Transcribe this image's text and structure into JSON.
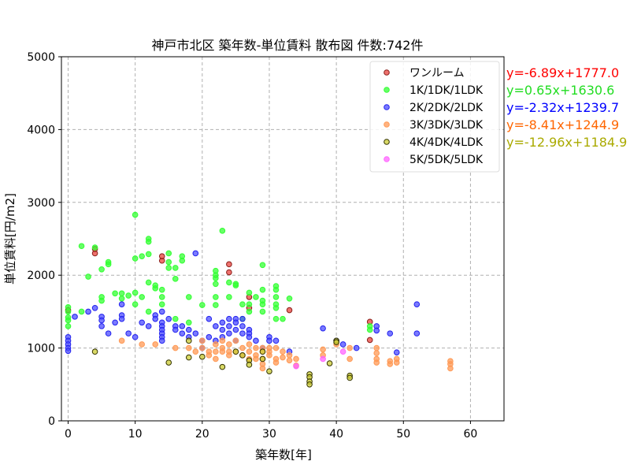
{
  "chart_data": {
    "type": "scatter",
    "title": "神戸市北区 築年数-単位賃料 散布図  件数:742件",
    "xlabel": "築年数[年]",
    "ylabel": "単位賃料[円/m2]",
    "xlim": [
      -1,
      65
    ],
    "ylim": [
      0,
      5000
    ],
    "xticks": [
      0,
      10,
      20,
      30,
      40,
      50,
      60
    ],
    "yticks": [
      0,
      1000,
      2000,
      3000,
      4000,
      5000
    ],
    "grid": true,
    "legend_position": "top-right",
    "series": [
      {
        "name": "ワンルーム",
        "color": "#e8413c",
        "edge": "#8a1f1a",
        "regression": "y=-6.89x+1777.0",
        "regression_color": "#ff0000",
        "points": [
          [
            0,
            1520
          ],
          [
            4,
            2300
          ],
          [
            4,
            2360
          ],
          [
            14,
            2200
          ],
          [
            14,
            2260
          ],
          [
            24,
            2040
          ],
          [
            24,
            2150
          ],
          [
            27,
            1700
          ],
          [
            27,
            1550
          ],
          [
            33,
            1520
          ],
          [
            45,
            1360
          ],
          [
            45,
            1110
          ]
        ]
      },
      {
        "name": "1K/1DK/1LDK",
        "color": "#33ff33",
        "edge": "#33ff33",
        "regression": "y=0.65x+1630.6",
        "regression_color": "#22dd22",
        "points": [
          [
            0,
            1560
          ],
          [
            0,
            1500
          ],
          [
            0,
            1420
          ],
          [
            0,
            1380
          ],
          [
            0,
            1300
          ],
          [
            2,
            2400
          ],
          [
            2,
            1500
          ],
          [
            3,
            1980
          ],
          [
            4,
            2380
          ],
          [
            5,
            1700
          ],
          [
            5,
            1650
          ],
          [
            5,
            2080
          ],
          [
            6,
            2180
          ],
          [
            6,
            2150
          ],
          [
            7,
            1750
          ],
          [
            8,
            1680
          ],
          [
            8,
            1750
          ],
          [
            9,
            1720
          ],
          [
            10,
            2830
          ],
          [
            10,
            2230
          ],
          [
            10,
            1760
          ],
          [
            10,
            1600
          ],
          [
            11,
            2260
          ],
          [
            11,
            1700
          ],
          [
            12,
            2500
          ],
          [
            12,
            2460
          ],
          [
            12,
            2290
          ],
          [
            12,
            1900
          ],
          [
            12,
            1500
          ],
          [
            13,
            1860
          ],
          [
            13,
            1820
          ],
          [
            14,
            1800
          ],
          [
            14,
            1700
          ],
          [
            14,
            1600
          ],
          [
            15,
            2300
          ],
          [
            15,
            2180
          ],
          [
            15,
            2100
          ],
          [
            16,
            2100
          ],
          [
            16,
            1950
          ],
          [
            16,
            1400
          ],
          [
            17,
            2200
          ],
          [
            17,
            2260
          ],
          [
            18,
            1700
          ],
          [
            18,
            1350
          ],
          [
            20,
            1590
          ],
          [
            22,
            2060
          ],
          [
            22,
            2000
          ],
          [
            22,
            1960
          ],
          [
            22,
            1880
          ],
          [
            22,
            1700
          ],
          [
            22,
            1590
          ],
          [
            23,
            2610
          ],
          [
            24,
            1900
          ],
          [
            24,
            1700
          ],
          [
            25,
            1880
          ],
          [
            25,
            1860
          ],
          [
            26,
            1600
          ],
          [
            26,
            1400
          ],
          [
            27,
            1760
          ],
          [
            27,
            1600
          ],
          [
            27,
            1500
          ],
          [
            28,
            1700
          ],
          [
            29,
            2140
          ],
          [
            29,
            1800
          ],
          [
            29,
            1650
          ],
          [
            29,
            1600
          ],
          [
            29,
            1500
          ],
          [
            31,
            1850
          ],
          [
            31,
            1800
          ],
          [
            31,
            1700
          ],
          [
            31,
            1600
          ],
          [
            31,
            1550
          ],
          [
            31,
            1400
          ],
          [
            32,
            1400
          ],
          [
            33,
            1680
          ],
          [
            45,
            1300
          ],
          [
            45,
            1250
          ]
        ]
      },
      {
        "name": "2K/2DK/2LDK",
        "color": "#4d4dff",
        "edge": "#2222ee",
        "regression": "y=-2.32x+1239.7",
        "regression_color": "#0000ff",
        "points": [
          [
            0,
            1150
          ],
          [
            0,
            1100
          ],
          [
            0,
            1050
          ],
          [
            0,
            1000
          ],
          [
            0,
            960
          ],
          [
            1,
            1430
          ],
          [
            3,
            1500
          ],
          [
            4,
            1550
          ],
          [
            5,
            1430
          ],
          [
            5,
            1380
          ],
          [
            5,
            1300
          ],
          [
            6,
            1200
          ],
          [
            7,
            1350
          ],
          [
            8,
            1600
          ],
          [
            8,
            1450
          ],
          [
            8,
            1400
          ],
          [
            9,
            1200
          ],
          [
            10,
            1150
          ],
          [
            11,
            1350
          ],
          [
            12,
            1300
          ],
          [
            13,
            1450
          ],
          [
            13,
            1400
          ],
          [
            14,
            1500
          ],
          [
            14,
            1350
          ],
          [
            14,
            1300
          ],
          [
            14,
            1250
          ],
          [
            14,
            1200
          ],
          [
            14,
            1150
          ],
          [
            14,
            1100
          ],
          [
            15,
            1400
          ],
          [
            16,
            1300
          ],
          [
            16,
            1250
          ],
          [
            17,
            1300
          ],
          [
            17,
            1200
          ],
          [
            18,
            1250
          ],
          [
            18,
            1150
          ],
          [
            19,
            2300
          ],
          [
            19,
            1200
          ],
          [
            20,
            1100
          ],
          [
            20,
            1000
          ],
          [
            21,
            1400
          ],
          [
            21,
            1150
          ],
          [
            22,
            1300
          ],
          [
            22,
            1100
          ],
          [
            23,
            1350
          ],
          [
            23,
            1250
          ],
          [
            23,
            1150
          ],
          [
            24,
            1400
          ],
          [
            24,
            1300
          ],
          [
            24,
            1200
          ],
          [
            25,
            1400
          ],
          [
            25,
            1350
          ],
          [
            25,
            1250
          ],
          [
            25,
            1100
          ],
          [
            26,
            1400
          ],
          [
            26,
            1300
          ],
          [
            26,
            1200
          ],
          [
            27,
            1250
          ],
          [
            27,
            1200
          ],
          [
            27,
            1150
          ],
          [
            28,
            1100
          ],
          [
            29,
            1000
          ],
          [
            30,
            1150
          ],
          [
            30,
            1100
          ],
          [
            31,
            1100
          ],
          [
            33,
            950
          ],
          [
            38,
            1270
          ],
          [
            40,
            1100
          ],
          [
            41,
            1050
          ],
          [
            43,
            1000
          ],
          [
            46,
            1300
          ],
          [
            46,
            1240
          ],
          [
            48,
            1200
          ],
          [
            49,
            940
          ],
          [
            52,
            1600
          ],
          [
            52,
            1200
          ]
        ]
      },
      {
        "name": "3K/3DK/3LDK",
        "color": "#ff9955",
        "edge": "#ff9955",
        "regression": "y=-8.41x+1244.9",
        "regression_color": "#ff6600",
        "points": [
          [
            8,
            1100
          ],
          [
            11,
            1050
          ],
          [
            13,
            1050
          ],
          [
            16,
            1000
          ],
          [
            18,
            1000
          ],
          [
            19,
            950
          ],
          [
            20,
            1100
          ],
          [
            20,
            1000
          ],
          [
            21,
            950
          ],
          [
            21,
            900
          ],
          [
            22,
            1050
          ],
          [
            22,
            950
          ],
          [
            22,
            850
          ],
          [
            23,
            1100
          ],
          [
            23,
            1000
          ],
          [
            23,
            950
          ],
          [
            24,
            1050
          ],
          [
            24,
            950
          ],
          [
            24,
            900
          ],
          [
            25,
            1100
          ],
          [
            25,
            950
          ],
          [
            26,
            1000
          ],
          [
            26,
            900
          ],
          [
            27,
            1050
          ],
          [
            27,
            950
          ],
          [
            27,
            850
          ],
          [
            28,
            1000
          ],
          [
            28,
            900
          ],
          [
            28,
            850
          ],
          [
            29,
            1000
          ],
          [
            29,
            950
          ],
          [
            29,
            850
          ],
          [
            29,
            780
          ],
          [
            29,
            720
          ],
          [
            30,
            1000
          ],
          [
            30,
            950
          ],
          [
            30,
            900
          ],
          [
            31,
            1000
          ],
          [
            31,
            850
          ],
          [
            31,
            800
          ],
          [
            32,
            950
          ],
          [
            32,
            870
          ],
          [
            33,
            900
          ],
          [
            33,
            830
          ],
          [
            34,
            850
          ],
          [
            34,
            760
          ],
          [
            38,
            980
          ],
          [
            38,
            900
          ],
          [
            40,
            1050
          ],
          [
            42,
            1000
          ],
          [
            42,
            850
          ],
          [
            46,
            1000
          ],
          [
            46,
            930
          ],
          [
            46,
            850
          ],
          [
            46,
            800
          ],
          [
            48,
            820
          ],
          [
            48,
            780
          ],
          [
            49,
            850
          ],
          [
            49,
            800
          ],
          [
            57,
            820
          ],
          [
            57,
            780
          ],
          [
            57,
            720
          ]
        ]
      },
      {
        "name": "4K/4DK/4LDK",
        "color": "#cccc33",
        "edge": "#333300",
        "regression": "y=-12.96x+1184.9",
        "regression_color": "#aaaa00",
        "points": [
          [
            4,
            950
          ],
          [
            15,
            800
          ],
          [
            18,
            1100
          ],
          [
            18,
            870
          ],
          [
            20,
            880
          ],
          [
            23,
            740
          ],
          [
            25,
            950
          ],
          [
            26,
            900
          ],
          [
            27,
            830
          ],
          [
            27,
            770
          ],
          [
            29,
            950
          ],
          [
            29,
            850
          ],
          [
            30,
            680
          ],
          [
            36,
            640
          ],
          [
            36,
            600
          ],
          [
            36,
            540
          ],
          [
            36,
            500
          ],
          [
            39,
            790
          ],
          [
            40,
            1100
          ],
          [
            40,
            1080
          ],
          [
            42,
            620
          ],
          [
            42,
            590
          ]
        ]
      },
      {
        "name": "5K/5DK/5LDK",
        "color": "#ff66ff",
        "edge": "#ff66ff",
        "regression": "",
        "regression_color": "#ff66ff",
        "points": [
          [
            34,
            750
          ],
          [
            38,
            850
          ],
          [
            41,
            950
          ]
        ]
      }
    ]
  }
}
